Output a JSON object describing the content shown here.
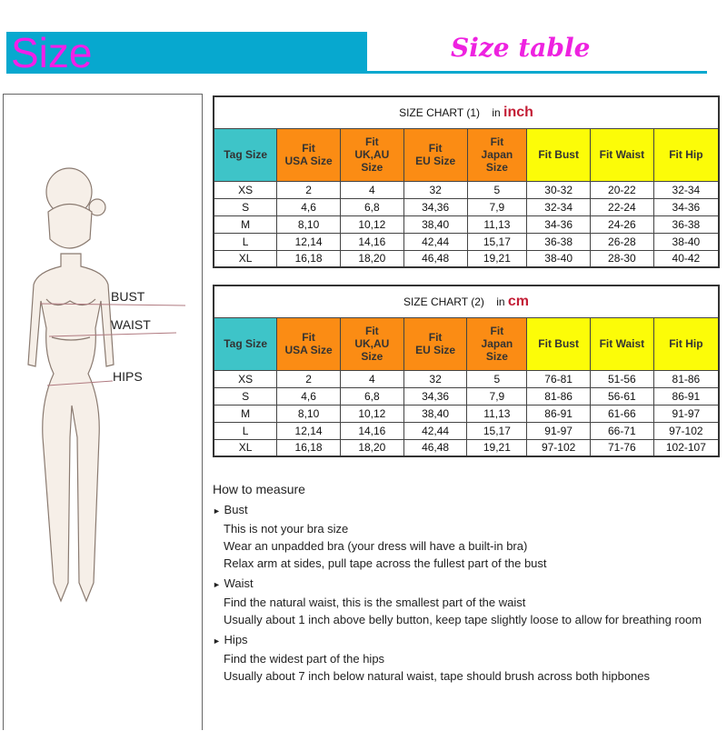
{
  "header": {
    "title": "Size",
    "subtitle": "Size table",
    "bar_color": "#07a8cf",
    "title_color": "#f21fe8"
  },
  "figure": {
    "labels": {
      "bust": "BUST",
      "waist": "WAIST",
      "hips": "HIPS"
    }
  },
  "columns": [
    "Tag Size",
    "Fit\nUSA Size",
    "Fit\nUK,AU\nSize",
    "Fit\nEU Size",
    "Fit\nJapan\nSize",
    "Fit Bust",
    "Fit Waist",
    "Fit Hip"
  ],
  "chart1": {
    "title": "SIZE CHART (1)",
    "unit_prefix": "in",
    "unit": "inch",
    "rows": [
      [
        "XS",
        "2",
        "4",
        "32",
        "5",
        "30-32",
        "20-22",
        "32-34"
      ],
      [
        "S",
        "4,6",
        "6,8",
        "34,36",
        "7,9",
        "32-34",
        "22-24",
        "34-36"
      ],
      [
        "M",
        "8,10",
        "10,12",
        "38,40",
        "11,13",
        "34-36",
        "24-26",
        "36-38"
      ],
      [
        "L",
        "12,14",
        "14,16",
        "42,44",
        "15,17",
        "36-38",
        "26-28",
        "38-40"
      ],
      [
        "XL",
        "16,18",
        "18,20",
        "46,48",
        "19,21",
        "38-40",
        "28-30",
        "40-42"
      ]
    ]
  },
  "chart2": {
    "title": "SIZE CHART (2)",
    "unit_prefix": "in",
    "unit": "cm",
    "rows": [
      [
        "XS",
        "2",
        "4",
        "32",
        "5",
        "76-81",
        "51-56",
        "81-86"
      ],
      [
        "S",
        "4,6",
        "6,8",
        "34,36",
        "7,9",
        "81-86",
        "56-61",
        "86-91"
      ],
      [
        "M",
        "8,10",
        "10,12",
        "38,40",
        "11,13",
        "86-91",
        "61-66",
        "91-97"
      ],
      [
        "L",
        "12,14",
        "14,16",
        "42,44",
        "15,17",
        "91-97",
        "66-71",
        "97-102"
      ],
      [
        "XL",
        "16,18",
        "18,20",
        "46,48",
        "19,21",
        "97-102",
        "71-76",
        "102-107"
      ]
    ]
  },
  "how": {
    "title": "How to measure",
    "sections": [
      {
        "name": "Bust",
        "lines": [
          "This is not your bra size",
          "Wear an unpadded bra (your dress will have a built-in bra)",
          "Relax arm at sides, pull tape across the fullest part of the bust"
        ]
      },
      {
        "name": "Waist",
        "lines": [
          "Find the natural waist, this is the smallest part of the waist",
          "Usually about 1 inch above belly button, keep tape slightly loose to allow for breathing room"
        ]
      },
      {
        "name": "Hips",
        "lines": [
          "Find the widest part of the hips",
          "Usually about 7 inch below natural waist, tape should brush across both hipbones"
        ]
      }
    ]
  }
}
